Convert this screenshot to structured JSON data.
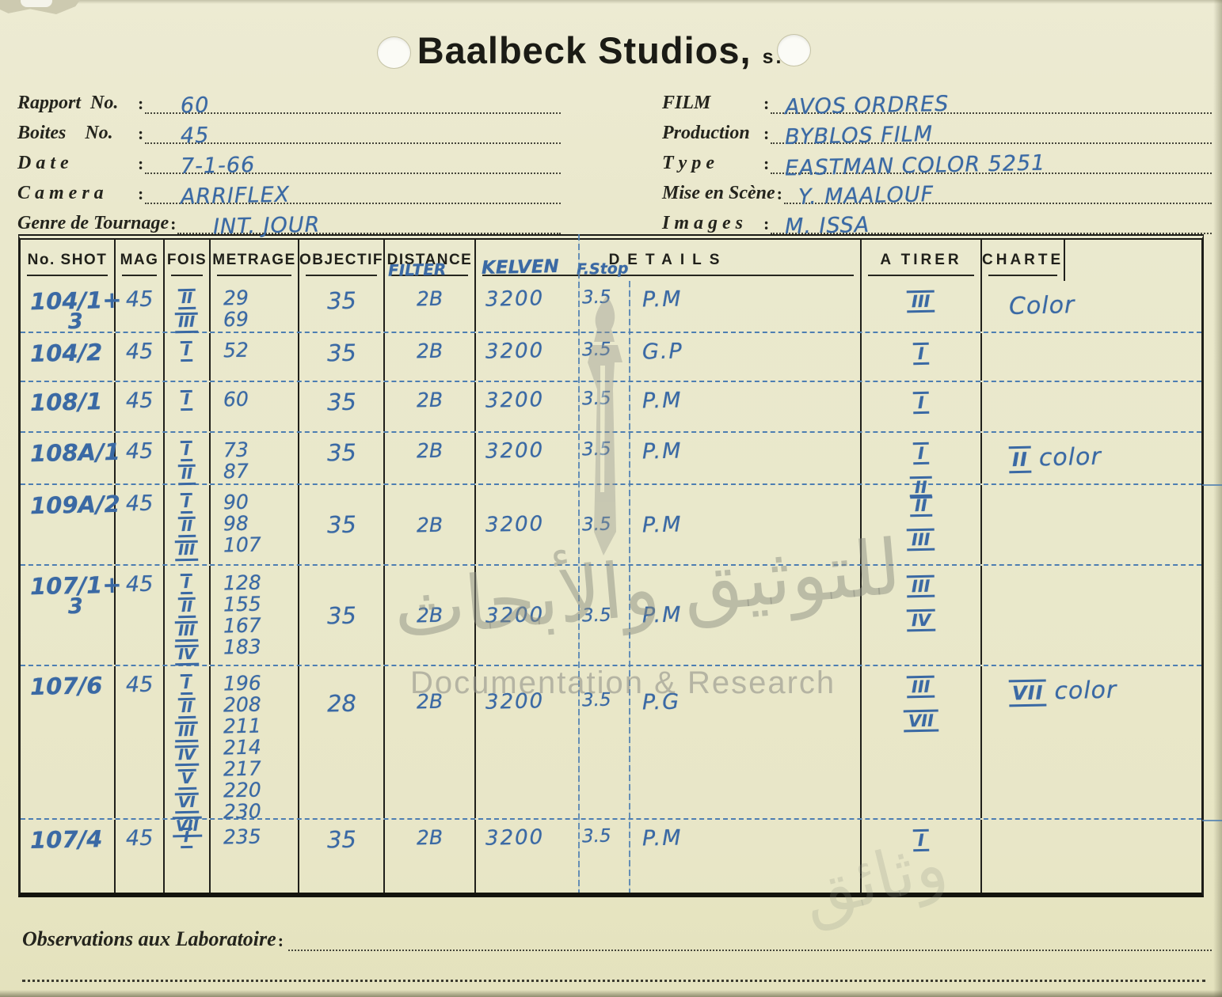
{
  "header": {
    "title": "Baalbeck Studios,",
    "title_suffix": "s. a"
  },
  "form": {
    "colon": ":",
    "left": [
      {
        "label": "Rapport  No.",
        "value": "60"
      },
      {
        "label": "Boites    No.",
        "value": "45"
      },
      {
        "label": "D a t e",
        "value": "7-1-66"
      },
      {
        "label": "C a m e r a",
        "value": "ARRIFLEX"
      },
      {
        "label": "Genre de Tournage",
        "value": "INT. JOUR"
      }
    ],
    "right": [
      {
        "label": "FILM",
        "value": "AVOS ORDRES"
      },
      {
        "label": "Production",
        "value": "BYBLOS FILM"
      },
      {
        "label": "T y p e",
        "value": "EASTMAN COLOR 5251"
      },
      {
        "label": "Mise en Scène",
        "value": "Y. MAALOUF"
      },
      {
        "label": "I m a g e s",
        "value": "M. ISSA"
      }
    ]
  },
  "table": {
    "headers": [
      "No. SHOT",
      "MAG",
      "FOIS",
      "METRAGE",
      "OBJECTIF",
      "DISTANCE",
      "DETAILS",
      "A TIRER",
      "CHARTE"
    ],
    "annotations": {
      "filter": "FILTER",
      "kelven": "KELVEN",
      "fstop": "F.Stop"
    },
    "rows": [
      {
        "shot": "104/1+",
        "shot_sub": "3",
        "mag": "45",
        "fois": [
          "II",
          "III"
        ],
        "metrage": [
          "29",
          "69"
        ],
        "objectif": "35",
        "filter": "2B",
        "kelvin": "3200",
        "fstop": "3.5",
        "details": "P.M",
        "a_tirer": [
          "III"
        ],
        "charte": {
          "roman": "",
          "text": "Color"
        }
      },
      {
        "shot": "104/2",
        "shot_sub": "",
        "mag": "45",
        "fois": [
          "I"
        ],
        "metrage": [
          "52"
        ],
        "objectif": "35",
        "filter": "2B",
        "kelvin": "3200",
        "fstop": "3.5",
        "details": "G.P",
        "a_tirer": [
          "I"
        ],
        "charte": {
          "roman": "",
          "text": ""
        }
      },
      {
        "shot": "108/1",
        "shot_sub": "",
        "mag": "45",
        "fois": [
          "I"
        ],
        "metrage": [
          "60"
        ],
        "objectif": "35",
        "filter": "2B",
        "kelvin": "3200",
        "fstop": "3.5",
        "details": "P.M",
        "a_tirer": [
          "I"
        ],
        "charte": {
          "roman": "",
          "text": ""
        }
      },
      {
        "shot": "108A/1",
        "shot_sub": "",
        "mag": "45",
        "fois": [
          "I",
          "II"
        ],
        "metrage": [
          "73",
          "87"
        ],
        "objectif": "35",
        "filter": "2B",
        "kelvin": "3200",
        "fstop": "3.5",
        "details": "P.M",
        "a_tirer": [
          "I",
          "II"
        ],
        "charte": {
          "roman": "II",
          "text": "color"
        }
      },
      {
        "shot": "109A/2",
        "shot_sub": "",
        "mag": "45",
        "fois": [
          "I",
          "II",
          "III"
        ],
        "metrage": [
          "90",
          "98",
          "107"
        ],
        "objectif": "35",
        "filter": "2B",
        "kelvin": "3200",
        "fstop": "3.5",
        "details": "P.M",
        "a_tirer": [
          "II",
          "III"
        ],
        "charte": {
          "roman": "",
          "text": ""
        }
      },
      {
        "shot": "107/1+",
        "shot_sub": "3",
        "mag": "45",
        "fois": [
          "I",
          "II",
          "III",
          "IV"
        ],
        "metrage": [
          "128",
          "155",
          "167",
          "183"
        ],
        "objectif": "35",
        "filter": "2B",
        "kelvin": "3200",
        "fstop": "3.5",
        "details": "P.M",
        "a_tirer": [
          "III",
          "IV"
        ],
        "charte": {
          "roman": "",
          "text": ""
        }
      },
      {
        "shot": "107/6",
        "shot_sub": "",
        "mag": "45",
        "fois": [
          "I",
          "II",
          "III",
          "IV",
          "V",
          "VI",
          "VII"
        ],
        "metrage": [
          "196",
          "208",
          "211",
          "214",
          "217",
          "220",
          "230"
        ],
        "objectif": "28",
        "filter": "2B",
        "kelvin": "3200",
        "fstop": "3.5",
        "details": "P.G",
        "a_tirer": [
          "III",
          "VII"
        ],
        "charte": {
          "roman": "VII",
          "text": "color"
        }
      },
      {
        "shot": "107/4",
        "shot_sub": "",
        "mag": "45",
        "fois": [
          "I"
        ],
        "metrage": [
          "235"
        ],
        "objectif": "35",
        "filter": "2B",
        "kelvin": "3200",
        "fstop": "3.5",
        "details": "P.M",
        "a_tirer": [
          "I"
        ],
        "charte": {
          "roman": "",
          "text": ""
        }
      }
    ]
  },
  "footer": {
    "observations_label": "Observations aux Laboratoire"
  },
  "watermark": {
    "arabic": "للتوثيق والأبحاث",
    "arabic_small": "وثائق",
    "english": "Documentation & Research"
  },
  "colors": {
    "paper": "#e9e7c9",
    "ink_blue": "#3a69a4",
    "print_black": "#23231f",
    "rule_blue": "#4d7eb2",
    "watermark_gray": "#9c9c92"
  }
}
